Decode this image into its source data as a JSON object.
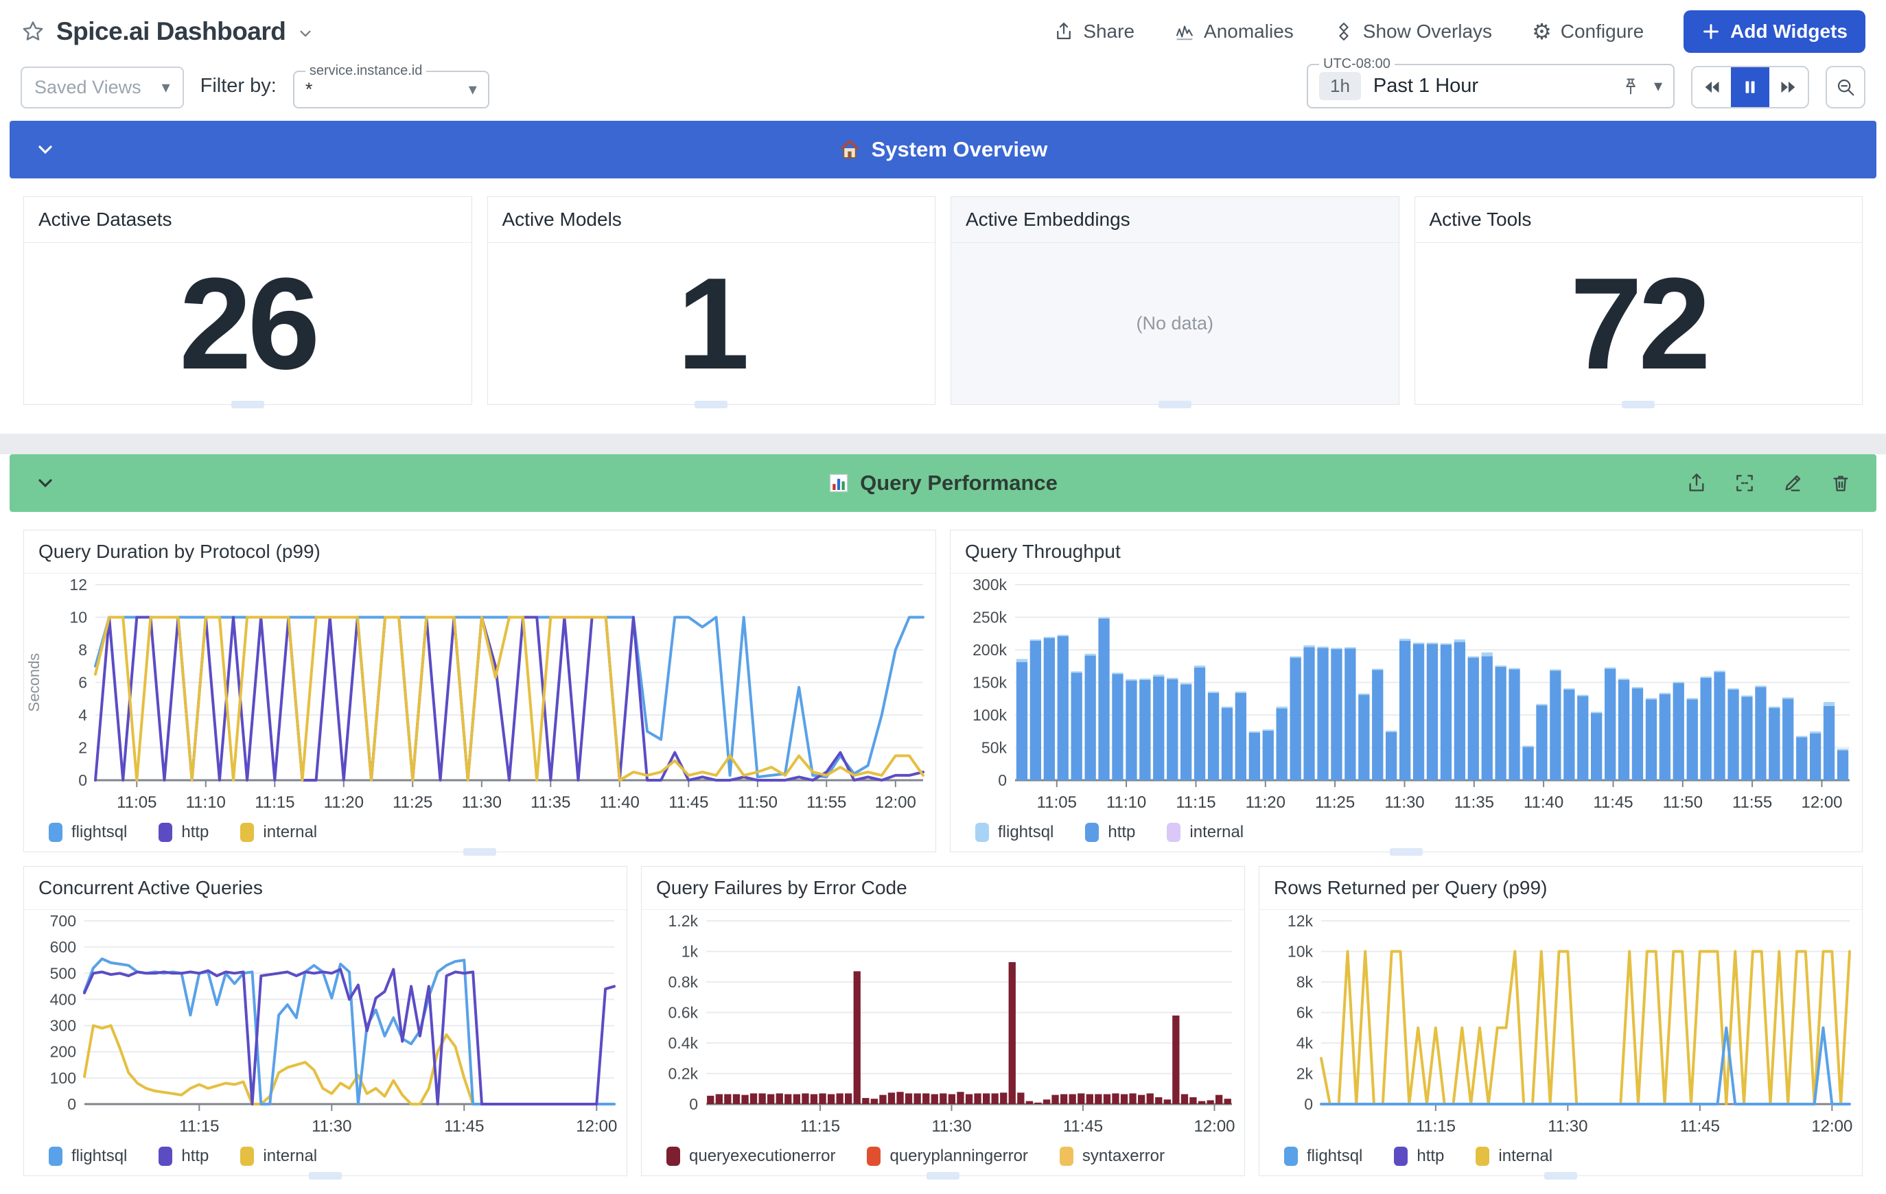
{
  "header": {
    "title": "Spice.ai Dashboard",
    "actions": [
      {
        "label": "Share"
      },
      {
        "label": "Anomalies"
      },
      {
        "label": "Show Overlays"
      },
      {
        "label": "Configure"
      }
    ],
    "add_widgets": "Add Widgets"
  },
  "toolbar": {
    "saved_views": "Saved Views",
    "filter_by": "Filter by:",
    "filter_field": "service.instance.id",
    "filter_value": "*",
    "timezone": "UTC-08:00",
    "range_badge": "1h",
    "range_label": "Past 1 Hour"
  },
  "icons": {
    "gear": "⚙",
    "caret": "▾"
  },
  "sections": [
    {
      "title": "System Overview",
      "icon": "house-icon",
      "color": "#3a67d2"
    },
    {
      "title": "Query Performance",
      "icon": "bar-chart-icon",
      "color": "#74cb97"
    }
  ],
  "stat_cards": [
    {
      "title": "Active Datasets",
      "value": "26"
    },
    {
      "title": "Active Models",
      "value": "1"
    },
    {
      "title": "Active Embeddings",
      "value": "",
      "no_data": "(No data)"
    },
    {
      "title": "Active Tools",
      "value": "72"
    }
  ],
  "chart_data": [
    {
      "type": "line",
      "title": "Query Duration by Protocol (p99)",
      "ylabel": "Seconds",
      "ylim": [
        0,
        12
      ],
      "ytick_vals": [
        0,
        2,
        4,
        6,
        8,
        10,
        12
      ],
      "ytick_labels": [
        "0",
        "2",
        "4",
        "6",
        "8",
        "10",
        "12"
      ],
      "xtick_pos": [
        0.05,
        0.1333,
        0.2167,
        0.3,
        0.3833,
        0.4667,
        0.55,
        0.6333,
        0.7167,
        0.8,
        0.8833,
        0.9667
      ],
      "xtick_labels": [
        "11:05",
        "11:10",
        "11:15",
        "11:20",
        "11:25",
        "11:30",
        "11:35",
        "11:40",
        "11:45",
        "11:50",
        "11:55",
        "12:00"
      ],
      "pad_left": 104,
      "series": [
        {
          "name": "flightsql",
          "color": "#59a1e8",
          "values": [
            7,
            10,
            10,
            10,
            10,
            10,
            10,
            10,
            10,
            10,
            10,
            10,
            10,
            10,
            10,
            10,
            10,
            10,
            10,
            10,
            10,
            10,
            10,
            10,
            10,
            10,
            10,
            10,
            10,
            10,
            10,
            10,
            10,
            10,
            10,
            10,
            10,
            10,
            10,
            10,
            3,
            2.5,
            10,
            10,
            9.4,
            10,
            0.3,
            10,
            0.2,
            0.3,
            0.4,
            5.7,
            0.3,
            0.2,
            1.5,
            0.4,
            0.9,
            4,
            8,
            10,
            10
          ]
        },
        {
          "name": "http",
          "color": "#5b4cc4",
          "values": [
            0,
            10,
            0,
            10,
            10,
            0,
            10,
            0,
            10,
            0,
            10,
            0,
            10,
            0,
            10,
            0,
            0,
            10,
            0,
            10,
            0,
            10,
            10,
            0,
            10,
            0,
            10,
            0,
            10,
            7,
            0,
            10,
            10,
            0,
            10,
            0,
            10,
            10,
            0,
            10,
            0,
            0,
            1.7,
            0,
            0.2,
            0,
            0,
            0.2,
            0,
            0,
            0,
            0.2,
            0,
            0.5,
            1.7,
            0,
            0.2,
            0,
            0.3,
            0.3,
            0.5
          ]
        },
        {
          "name": "internal",
          "color": "#e5bf41",
          "values": [
            6.5,
            10,
            10,
            0,
            10,
            10,
            10,
            0,
            10,
            10,
            0,
            10,
            10,
            10,
            10,
            0,
            10,
            10,
            10,
            10,
            0,
            10,
            10,
            0,
            10,
            10,
            10,
            0,
            10,
            6.3,
            10,
            10,
            0,
            10,
            10,
            10,
            10,
            10,
            0,
            0.5,
            0.3,
            0.5,
            1.2,
            0.3,
            0.5,
            0.3,
            1.5,
            0.3,
            0.5,
            0.8,
            0.3,
            1.5,
            0.5,
            0.3,
            0.8,
            0.3,
            0.5,
            0.3,
            1.5,
            1.5,
            0.3
          ]
        }
      ],
      "legend": [
        {
          "name": "flightsql",
          "color": "#59a1e8"
        },
        {
          "name": "http",
          "color": "#5b4cc4"
        },
        {
          "name": "internal",
          "color": "#e5bf41"
        }
      ]
    },
    {
      "type": "bar",
      "title": "Query Throughput",
      "ylim": [
        0,
        300000
      ],
      "ytick_vals": [
        0,
        50000,
        100000,
        150000,
        200000,
        250000,
        300000
      ],
      "ytick_labels": [
        "0",
        "50k",
        "100k",
        "150k",
        "200k",
        "250k",
        "300k"
      ],
      "xtick_pos": [
        0.05,
        0.1333,
        0.2167,
        0.3,
        0.3833,
        0.4667,
        0.55,
        0.6333,
        0.7167,
        0.8,
        0.8833,
        0.9667
      ],
      "xtick_labels": [
        "11:05",
        "11:10",
        "11:15",
        "11:20",
        "11:25",
        "11:30",
        "11:35",
        "11:40",
        "11:45",
        "11:50",
        "11:55",
        "12:00"
      ],
      "pad_left": 94,
      "series": [
        {
          "name": "http",
          "color": "#5c9ce6",
          "values": [
            181000,
            214000,
            218000,
            221000,
            165000,
            191000,
            248000,
            163000,
            153000,
            154000,
            159000,
            155000,
            147000,
            173000,
            134000,
            111000,
            134000,
            73000,
            76000,
            110000,
            188000,
            204000,
            203000,
            201000,
            202000,
            131000,
            169000,
            74000,
            214000,
            209000,
            209000,
            208000,
            212000,
            188000,
            190000,
            174000,
            170000,
            51000,
            115000,
            168000,
            139000,
            129000,
            103000,
            171000,
            154000,
            141000,
            124000,
            132000,
            149000,
            124000,
            157000,
            166000,
            139000,
            128000,
            143000,
            111000,
            125000,
            66000,
            72000,
            114000,
            46000
          ]
        },
        {
          "name": "flightsql",
          "color": "#a9d3f5",
          "values": [
            5000,
            2000,
            2000,
            2000,
            2000,
            3000,
            2000,
            2000,
            2000,
            2000,
            3000,
            2000,
            2000,
            3000,
            2000,
            2000,
            2000,
            2000,
            2000,
            3000,
            2000,
            3000,
            2000,
            2000,
            2000,
            2000,
            2000,
            2000,
            3000,
            2000,
            2000,
            2000,
            4000,
            2000,
            6000,
            2000,
            2000,
            2000,
            2000,
            2000,
            2000,
            2000,
            2000,
            2000,
            2000,
            2000,
            2000,
            2000,
            2000,
            2000,
            2000,
            2000,
            2000,
            2000,
            2000,
            2000,
            2000,
            2000,
            3000,
            6000,
            2000
          ]
        },
        {
          "name": "internal",
          "color": "#d9c8f8",
          "values": []
        }
      ],
      "legend": [
        {
          "name": "flightsql",
          "color": "#a9d3f5"
        },
        {
          "name": "http",
          "color": "#5c9ce6"
        },
        {
          "name": "internal",
          "color": "#d9c8f8"
        }
      ]
    },
    {
      "type": "line",
      "title": "Concurrent Active Queries",
      "ylim": [
        0,
        700
      ],
      "ytick_vals": [
        0,
        100,
        200,
        300,
        400,
        500,
        600,
        700
      ],
      "ytick_labels": [
        "0",
        "100",
        "200",
        "300",
        "400",
        "500",
        "600",
        "700"
      ],
      "xtick_pos": [
        0.2167,
        0.4667,
        0.7167,
        0.9667
      ],
      "xtick_labels": [
        "11:15",
        "11:30",
        "11:45",
        "12:00"
      ],
      "pad_left": 88,
      "series": [
        {
          "name": "internal",
          "color": "#e5bf41",
          "values": [
            105,
            300,
            290,
            300,
            215,
            120,
            80,
            60,
            50,
            45,
            40,
            35,
            60,
            75,
            60,
            70,
            80,
            75,
            85,
            0,
            0,
            30,
            120,
            140,
            150,
            160,
            130,
            60,
            40,
            80,
            60,
            110,
            40,
            60,
            30,
            90,
            35,
            0,
            0,
            60,
            200,
            265,
            220,
            100,
            0,
            0,
            0,
            0,
            0,
            0,
            0,
            0,
            0,
            0,
            0,
            0,
            0,
            0,
            0,
            0,
            0
          ]
        },
        {
          "name": "flightsql",
          "color": "#59a1e8",
          "values": [
            430,
            520,
            555,
            540,
            535,
            530,
            505,
            500,
            505,
            500,
            505,
            500,
            340,
            500,
            505,
            380,
            500,
            460,
            500,
            505,
            0,
            0,
            340,
            380,
            330,
            505,
            530,
            505,
            405,
            535,
            505,
            0,
            300,
            360,
            260,
            330,
            250,
            230,
            280,
            410,
            505,
            530,
            545,
            550,
            0,
            0,
            0,
            0,
            0,
            0,
            0,
            0,
            0,
            0,
            0,
            0,
            0,
            0,
            0,
            0,
            0
          ]
        },
        {
          "name": "http",
          "color": "#5b4cc4",
          "values": [
            425,
            500,
            505,
            495,
            500,
            490,
            505,
            500,
            500,
            505,
            500,
            500,
            505,
            500,
            510,
            490,
            505,
            500,
            505,
            0,
            490,
            495,
            500,
            505,
            490,
            505,
            500,
            505,
            500,
            515,
            400,
            455,
            280,
            405,
            430,
            515,
            240,
            450,
            260,
            450,
            0,
            490,
            505,
            500,
            505,
            0,
            0,
            0,
            0,
            0,
            0,
            0,
            0,
            0,
            0,
            0,
            0,
            0,
            0,
            440,
            450
          ]
        }
      ],
      "legend": [
        {
          "name": "flightsql",
          "color": "#59a1e8"
        },
        {
          "name": "http",
          "color": "#5b4cc4"
        },
        {
          "name": "internal",
          "color": "#e5bf41"
        }
      ]
    },
    {
      "type": "bar",
      "title": "Query Failures by Error Code",
      "ylim": [
        0,
        1200
      ],
      "ytick_vals": [
        0,
        200,
        400,
        600,
        800,
        1000,
        1200
      ],
      "ytick_labels": [
        "0",
        "0.2k",
        "0.4k",
        "0.6k",
        "0.8k",
        "1k",
        "1.2k"
      ],
      "xtick_pos": [
        0.2167,
        0.4667,
        0.7167,
        0.9667
      ],
      "xtick_labels": [
        "11:15",
        "11:30",
        "11:45",
        "12:00"
      ],
      "pad_left": 94,
      "series": [
        {
          "name": "queryexecutionerror",
          "color": "#7c1f30",
          "values": [
            55,
            65,
            65,
            65,
            60,
            70,
            70,
            65,
            70,
            65,
            65,
            70,
            65,
            70,
            65,
            70,
            70,
            870,
            40,
            35,
            60,
            75,
            80,
            70,
            70,
            70,
            65,
            70,
            65,
            80,
            65,
            70,
            70,
            70,
            75,
            930,
            75,
            20,
            10,
            30,
            60,
            65,
            65,
            70,
            65,
            65,
            65,
            70,
            65,
            70,
            60,
            70,
            45,
            30,
            580,
            65,
            45,
            20,
            25,
            60,
            35
          ]
        },
        {
          "name": "queryplanningerror",
          "color": "#e0502e",
          "values": []
        },
        {
          "name": "syntaxerror",
          "color": "#efc05c",
          "values": []
        }
      ],
      "legend": [
        {
          "name": "queryexecutionerror",
          "color": "#7c1f30"
        },
        {
          "name": "queryplanningerror",
          "color": "#e0502e"
        },
        {
          "name": "syntaxerror",
          "color": "#efc05c"
        }
      ]
    },
    {
      "type": "line",
      "title": "Rows Returned per Query (p99)",
      "ylim": [
        0,
        12000
      ],
      "ytick_vals": [
        0,
        2000,
        4000,
        6000,
        8000,
        10000,
        12000
      ],
      "ytick_labels": [
        "0",
        "2k",
        "4k",
        "6k",
        "8k",
        "10k",
        "12k"
      ],
      "xtick_pos": [
        0.2167,
        0.4667,
        0.7167,
        0.9667
      ],
      "xtick_labels": [
        "11:15",
        "11:30",
        "11:45",
        "12:00"
      ],
      "pad_left": 90,
      "series": [
        {
          "name": "internal",
          "color": "#e5bf41",
          "values": [
            3000,
            0,
            0,
            10000,
            0,
            10000,
            0,
            0,
            10000,
            10000,
            0,
            5000,
            0,
            5000,
            0,
            0,
            5000,
            0,
            5000,
            0,
            5000,
            5000,
            10000,
            0,
            0,
            10000,
            0,
            10000,
            10000,
            0,
            0,
            0,
            0,
            0,
            0,
            10000,
            0,
            10000,
            10000,
            0,
            10000,
            10000,
            0,
            10000,
            10000,
            10000,
            0,
            10000,
            0,
            10000,
            10000,
            0,
            10000,
            0,
            10000,
            10000,
            0,
            10000,
            10000,
            0,
            10000
          ]
        },
        {
          "name": "flightsql",
          "color": "#59a1e8",
          "values": [
            0,
            0,
            0,
            0,
            0,
            0,
            0,
            0,
            0,
            0,
            0,
            0,
            0,
            0,
            0,
            0,
            0,
            0,
            0,
            0,
            0,
            0,
            0,
            0,
            0,
            0,
            0,
            0,
            0,
            0,
            0,
            0,
            0,
            0,
            0,
            0,
            0,
            0,
            0,
            0,
            0,
            0,
            0,
            0,
            0,
            0,
            5000,
            0,
            0,
            0,
            0,
            0,
            0,
            0,
            0,
            0,
            0,
            5000,
            0,
            0,
            0
          ]
        },
        {
          "name": "http",
          "color": "#5b4cc4",
          "values": []
        }
      ],
      "legend": [
        {
          "name": "flightsql",
          "color": "#59a1e8"
        },
        {
          "name": "http",
          "color": "#5b4cc4"
        },
        {
          "name": "internal",
          "color": "#e5bf41"
        }
      ]
    }
  ]
}
